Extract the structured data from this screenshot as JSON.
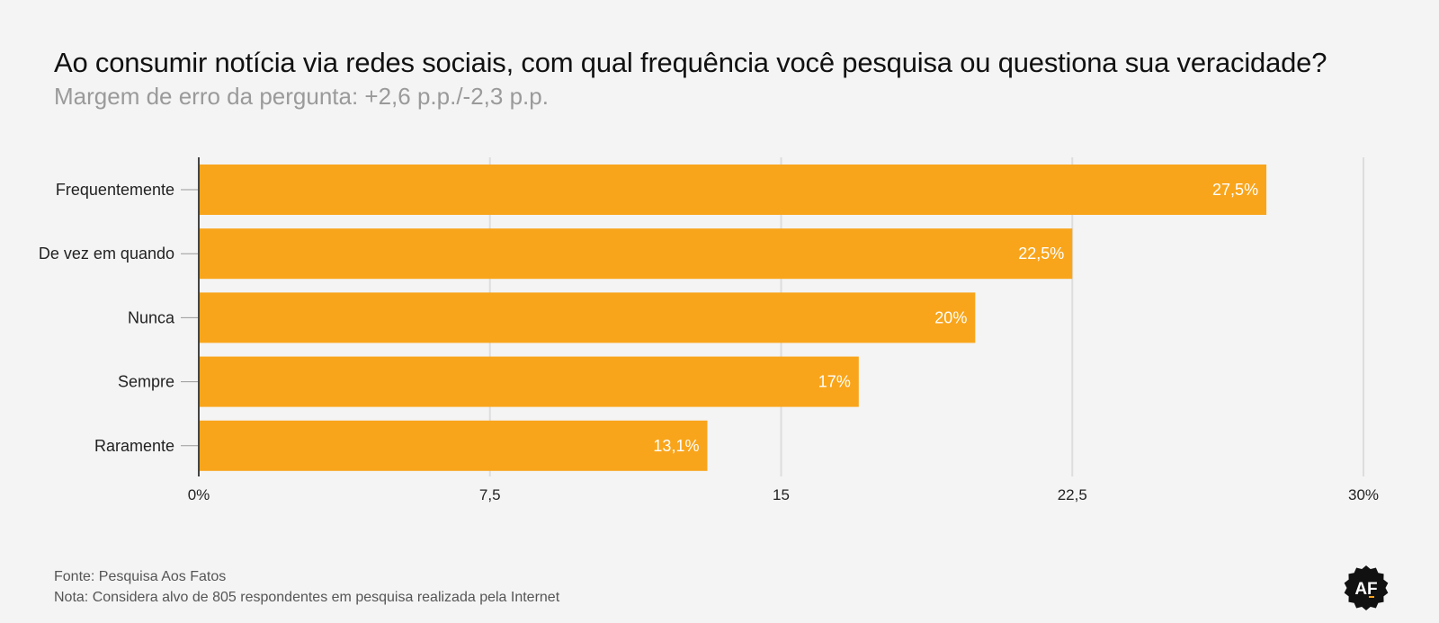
{
  "chart_data": {
    "type": "bar",
    "orientation": "horizontal",
    "title": "Ao consumir notícia via redes sociais, com qual frequência você pesquisa ou questiona sua veracidade?",
    "subtitle": "Margem de erro da pergunta: +2,6 p.p./-2,3 p.p.",
    "categories": [
      "Frequentemente",
      "De vez em quando",
      "Nunca",
      "Sempre",
      "Raramente"
    ],
    "values": [
      27.5,
      22.5,
      20,
      17,
      13.1
    ],
    "value_labels": [
      "27,5%",
      "22,5%",
      "20%",
      "17%",
      "13,1%"
    ],
    "xlim": [
      0,
      30
    ],
    "x_ticks": [
      0,
      7.5,
      15,
      22.5,
      30
    ],
    "x_tick_labels": [
      "0%",
      "7,5",
      "15",
      "22,5",
      "30%"
    ],
    "grid": true,
    "bar_color": "#f9a51b"
  },
  "footer": {
    "source": "Fonte: Pesquisa Aos Fatos",
    "note": "Nota: Considera alvo de 805 respondentes em pesquisa realizada pela Internet"
  },
  "logo": {
    "text": "AF",
    "icon": "aos-fatos-logo-icon",
    "accent": "#f9a51b"
  }
}
